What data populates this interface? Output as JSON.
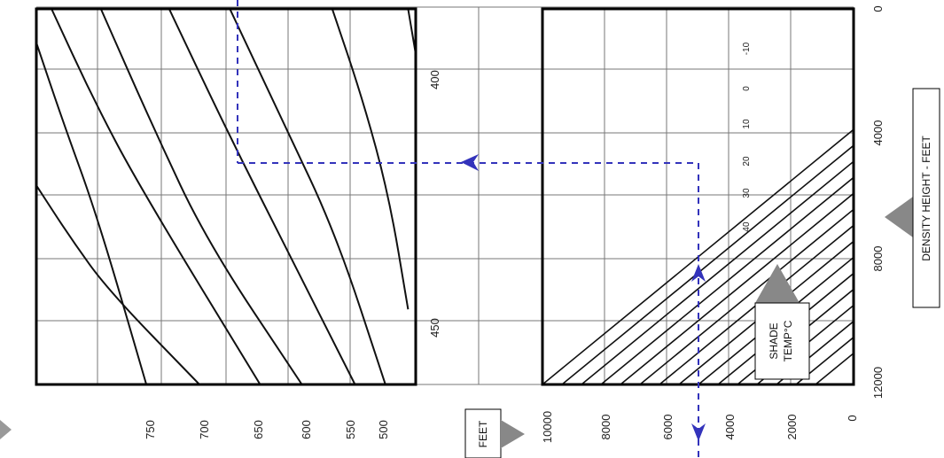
{
  "chart_data": {
    "type": "line",
    "title": "",
    "panels": [
      {
        "name": "left",
        "description_curves": [
          {
            "x": [
              0.0,
              0.07,
              0.16,
              0.29
            ],
            "y": [
              0.91,
              0.7,
              0.45,
              0.0
            ]
          },
          {
            "x": [
              0.0,
              0.09,
              0.19,
              0.43
            ],
            "y": [
              0.53,
              0.39,
              0.25,
              0.0
            ]
          },
          {
            "x": [
              0.04,
              0.15,
              0.27,
              0.59
            ],
            "y": [
              1.0,
              0.76,
              0.53,
              0.0
            ]
          },
          {
            "x": [
              0.17,
              0.31,
              0.45,
              0.7
            ],
            "y": [
              1.0,
              0.68,
              0.38,
              0.0
            ]
          },
          {
            "x": [
              0.35,
              0.51,
              0.67,
              0.84
            ],
            "y": [
              1.0,
              0.66,
              0.34,
              0.0
            ]
          },
          {
            "x": [
              0.51,
              0.65,
              0.79,
              0.92
            ],
            "y": [
              1.0,
              0.7,
              0.4,
              0.0
            ]
          },
          {
            "x": [
              0.78,
              0.86,
              0.93,
              0.98
            ],
            "y": [
              1.0,
              0.76,
              0.5,
              0.2
            ]
          },
          {
            "x": [
              0.98,
              1.0
            ],
            "y": [
              1.0,
              0.88
            ]
          }
        ],
        "bottom_tick_labels": [
          "750",
          "700",
          "650",
          "600",
          "550",
          "500"
        ]
      },
      {
        "name": "right",
        "temperature_labels": [
          "-10",
          "0",
          "10",
          "20",
          "30",
          "40"
        ],
        "legend_label_lines": [
          "SHADE",
          "TEMP°C"
        ],
        "bottom_tick_labels": [
          "10000",
          "8000",
          "6000",
          "4000",
          "2000",
          "0"
        ],
        "bottom_axis_label": "FEET"
      }
    ],
    "center_tick_labels": [
      "400",
      "450"
    ],
    "right_axis": {
      "tick_labels": [
        "0",
        "4000",
        "8000",
        "12000"
      ],
      "label": "DENSITY HEIGHT - FEET"
    },
    "example_path_color": "#3333bb"
  }
}
